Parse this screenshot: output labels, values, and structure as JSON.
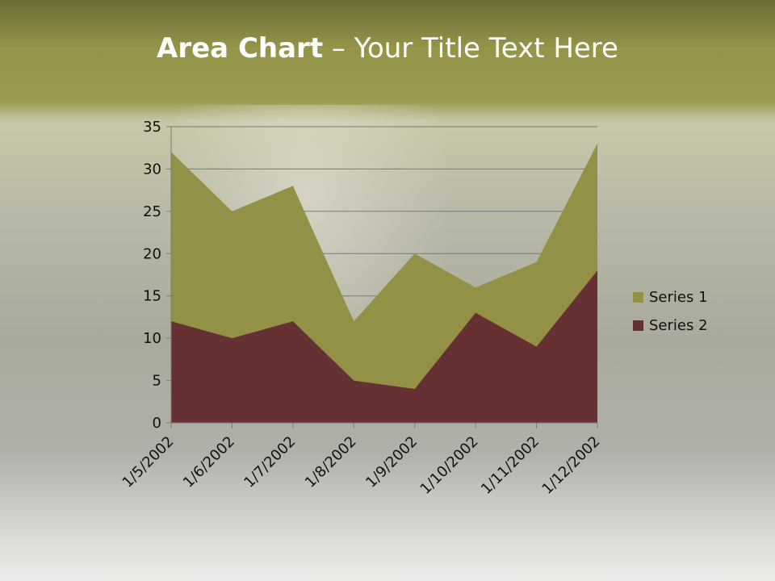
{
  "title_bold": "Area Chart",
  "title_rest": " – Your Title Text Here",
  "chart_data": {
    "type": "area",
    "categories": [
      "1/5/2002",
      "1/6/2002",
      "1/7/2002",
      "1/8/2002",
      "1/9/2002",
      "1/10/2002",
      "1/11/2002",
      "1/12/2002"
    ],
    "series": [
      {
        "name": "Series 1",
        "values": [
          32,
          25,
          28,
          12,
          20,
          16,
          19,
          33
        ],
        "color": "#939146"
      },
      {
        "name": "Series 2",
        "values": [
          12,
          10,
          12,
          5,
          4,
          13,
          9,
          18
        ],
        "color": "#663133"
      }
    ],
    "ylim": [
      0,
      35
    ],
    "yticks": [
      0,
      5,
      10,
      15,
      20,
      25,
      30,
      35
    ],
    "grid": true,
    "legend": "right"
  }
}
